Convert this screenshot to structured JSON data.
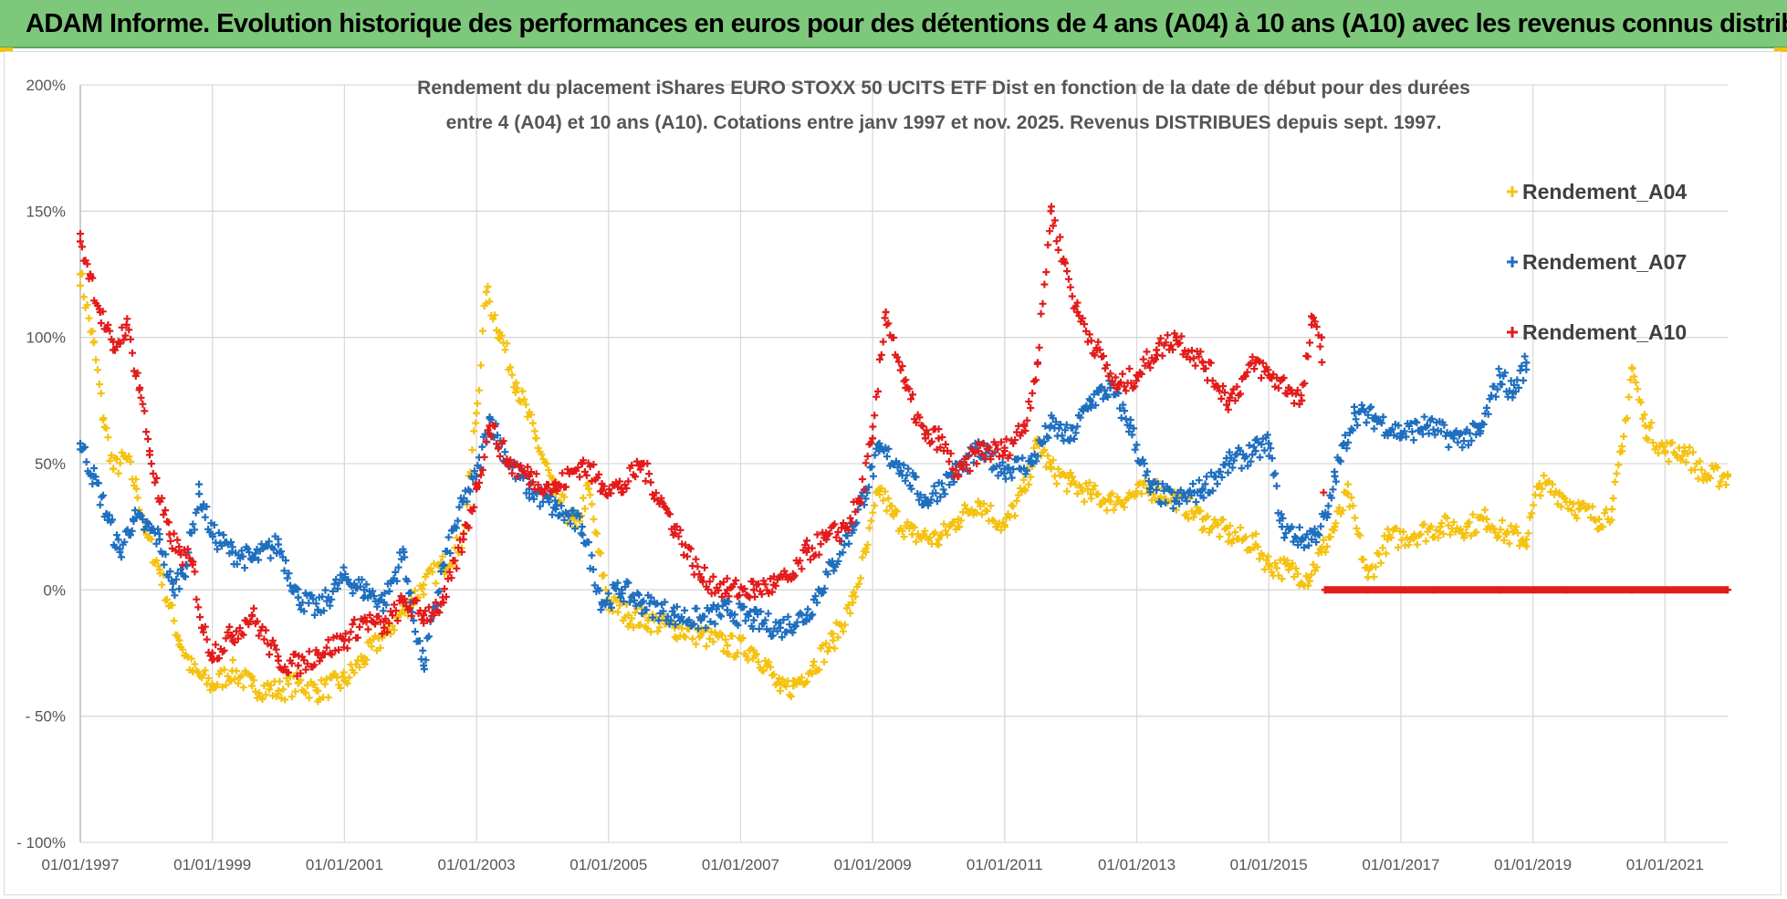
{
  "banner": {
    "title": "ADAM Informe. Evolution historique des performances en euros pour des détentions de 4 ans (A04) à 10 ans (A10) avec les revenus connus distribués"
  },
  "chart_data": {
    "type": "scatter",
    "title_lines": [
      "Rendement du placement iShares EURO STOXX 50 UCITS ETF Dist en fonction de la date de début pour des durées",
      "entre 4 (A04) et 10 ans (A10).  Cotations entre janv 1997 et nov. 2025. Revenus DISTRIBUES depuis sept. 1997."
    ],
    "xlabel": "",
    "ylabel": "",
    "xlim": [
      1997.0,
      2021.95
    ],
    "ylim": [
      -100,
      200
    ],
    "grid": true,
    "legend_position": "right",
    "x_ticks": [
      "01/01/1997",
      "01/01/1999",
      "01/01/2001",
      "01/01/2003",
      "01/01/2005",
      "01/01/2007",
      "01/01/2009",
      "01/01/2011",
      "01/01/2013",
      "01/01/2015",
      "01/01/2017",
      "01/01/2019",
      "01/01/2021"
    ],
    "x_tick_values": [
      1997,
      1999,
      2001,
      2003,
      2005,
      2007,
      2009,
      2011,
      2013,
      2015,
      2017,
      2019,
      2021
    ],
    "y_ticks": [
      "200%",
      "150%",
      "100%",
      "50%",
      "0%",
      "- 50%",
      "- 100%"
    ],
    "y_tick_values": [
      200,
      150,
      100,
      50,
      0,
      -50,
      -100
    ],
    "series": [
      {
        "name": "Rendement_A04",
        "color": "#f5c211",
        "marker": "+",
        "x": [
          1997.0,
          1997.2,
          1997.35,
          1997.5,
          1997.7,
          1997.85,
          1998.0,
          1998.2,
          1998.5,
          1998.7,
          1999.0,
          1999.3,
          1999.6,
          2000.0,
          2000.3,
          2000.6,
          2001.0,
          2001.3,
          2001.6,
          2001.9,
          2002.2,
          2002.5,
          2002.8,
          2003.0,
          2003.15,
          2003.35,
          2003.6,
          2003.9,
          2004.2,
          2004.5,
          2004.7,
          2004.85,
          2005.0,
          2005.3,
          2005.6,
          2006.0,
          2006.4,
          2006.8,
          2007.2,
          2007.4,
          2007.6,
          2007.8,
          2008.1,
          2008.4,
          2008.7,
          2008.9,
          2009.1,
          2009.3,
          2009.6,
          2010.0,
          2010.3,
          2010.6,
          2011.0,
          2011.3,
          2011.5,
          2011.7,
          2012.0,
          2012.3,
          2012.6,
          2013.0,
          2013.3,
          2013.6,
          2014.0,
          2014.4,
          2014.8,
          2015.0,
          2015.3,
          2015.6,
          2015.8,
          2016.0,
          2016.2,
          2016.5,
          2016.8,
          2017.2,
          2017.6,
          2018.0,
          2018.3,
          2018.6,
          2018.9,
          2019.1,
          2019.4,
          2019.7,
          2020.0,
          2020.2,
          2020.35,
          2020.5,
          2020.7,
          2021.0,
          2021.3,
          2021.6,
          2021.95
        ],
        "y": [
          125,
          98,
          68,
          48,
          52,
          40,
          22,
          8,
          -20,
          -32,
          -38,
          -32,
          -38,
          -40,
          -37,
          -40,
          -36,
          -27,
          -18,
          -8,
          2,
          10,
          20,
          70,
          118,
          102,
          82,
          60,
          38,
          25,
          40,
          15,
          -5,
          -10,
          -12,
          -15,
          -18,
          -22,
          -24,
          -30,
          -40,
          -38,
          -30,
          -20,
          -5,
          15,
          40,
          30,
          22,
          20,
          28,
          35,
          25,
          40,
          58,
          48,
          42,
          38,
          35,
          38,
          40,
          36,
          28,
          22,
          18,
          10,
          8,
          5,
          15,
          25,
          38,
          5,
          20,
          22,
          25,
          25,
          28,
          22,
          20,
          42,
          38,
          32,
          28,
          32,
          55,
          88,
          65,
          55,
          55,
          45,
          45
        ]
      },
      {
        "name": "Rendement_A07",
        "color": "#1f6fbf",
        "marker": "+",
        "x": [
          1997.0,
          1997.2,
          1997.4,
          1997.6,
          1997.8,
          1998.0,
          1998.2,
          1998.4,
          1998.6,
          1998.8,
          1999.0,
          1999.3,
          1999.6,
          2000.0,
          2000.3,
          2000.6,
          2001.0,
          2001.3,
          2001.6,
          2001.9,
          2002.0,
          2002.2,
          2002.5,
          2002.8,
          2003.0,
          2003.2,
          2003.5,
          2003.8,
          2004.2,
          2004.6,
          2004.9,
          2005.2,
          2005.5,
          2006.0,
          2006.4,
          2006.8,
          2007.2,
          2007.6,
          2008.0,
          2008.4,
          2008.7,
          2008.9,
          2009.1,
          2009.4,
          2009.8,
          2010.2,
          2010.6,
          2011.0,
          2011.4,
          2011.7,
          2012.0,
          2012.3,
          2012.6,
          2012.9,
          2013.2,
          2013.6,
          2014.0,
          2014.4,
          2014.8,
          2015.0,
          2015.2,
          2015.5,
          2015.7,
          2015.9,
          2016.0,
          2016.3,
          2016.6,
          2017.0,
          2017.4,
          2017.8,
          2018.2,
          2018.5,
          2018.7,
          2018.9
        ],
        "y": [
          58,
          45,
          30,
          15,
          28,
          25,
          20,
          0,
          10,
          38,
          22,
          15,
          12,
          18,
          -3,
          -8,
          5,
          0,
          -5,
          15,
          -5,
          -30,
          10,
          35,
          45,
          68,
          50,
          40,
          32,
          25,
          -5,
          0,
          -5,
          -10,
          -12,
          -8,
          -12,
          -15,
          -10,
          10,
          25,
          40,
          55,
          50,
          35,
          45,
          55,
          48,
          50,
          65,
          60,
          75,
          80,
          65,
          40,
          35,
          40,
          50,
          55,
          58,
          25,
          20,
          22,
          30,
          45,
          70,
          68,
          62,
          65,
          60,
          62,
          85,
          78,
          90
        ]
      },
      {
        "name": "Rendement_A10",
        "color": "#e31b1b",
        "marker": "+",
        "x": [
          1997.0,
          1997.15,
          1997.3,
          1997.5,
          1997.7,
          1997.9,
          1998.05,
          1998.2,
          1998.35,
          1998.5,
          1998.7,
          1998.85,
          1999.0,
          1999.3,
          1999.6,
          2000.0,
          2000.3,
          2000.6,
          2001.0,
          2001.3,
          2001.6,
          2001.9,
          2002.2,
          2002.5,
          2002.8,
          2003.0,
          2003.2,
          2003.5,
          2003.8,
          2004.2,
          2004.6,
          2004.9,
          2005.2,
          2005.5,
          2005.8,
          2006.0,
          2006.4,
          2006.8,
          2007.2,
          2007.5,
          2007.8,
          2008.0,
          2008.3,
          2008.6,
          2008.8,
          2009.0,
          2009.2,
          2009.5,
          2009.8,
          2010.0,
          2010.3,
          2010.6,
          2011.0,
          2011.3,
          2011.5,
          2011.7,
          2011.9,
          2012.1,
          2012.4,
          2012.7,
          2013.0,
          2013.3,
          2013.6,
          2014.0,
          2014.4,
          2014.8,
          2015.0,
          2015.3,
          2015.5,
          2015.65,
          2015.8,
          2015.85,
          2016.5,
          2017.5,
          2018.5,
          2019.5,
          2020.5,
          2021.95
        ],
        "y": [
          138,
          125,
          110,
          95,
          105,
          80,
          55,
          35,
          22,
          15,
          10,
          -15,
          -25,
          -18,
          -10,
          -28,
          -30,
          -25,
          -20,
          -12,
          -15,
          -5,
          -10,
          -5,
          20,
          40,
          65,
          50,
          45,
          40,
          50,
          42,
          40,
          50,
          35,
          25,
          5,
          0,
          0,
          2,
          5,
          15,
          20,
          25,
          35,
          60,
          110,
          80,
          60,
          60,
          45,
          55,
          55,
          65,
          90,
          150,
          130,
          110,
          95,
          80,
          85,
          95,
          100,
          90,
          75,
          90,
          85,
          80,
          75,
          105,
          100,
          0,
          0,
          0,
          0,
          0,
          0,
          0
        ]
      }
    ]
  }
}
